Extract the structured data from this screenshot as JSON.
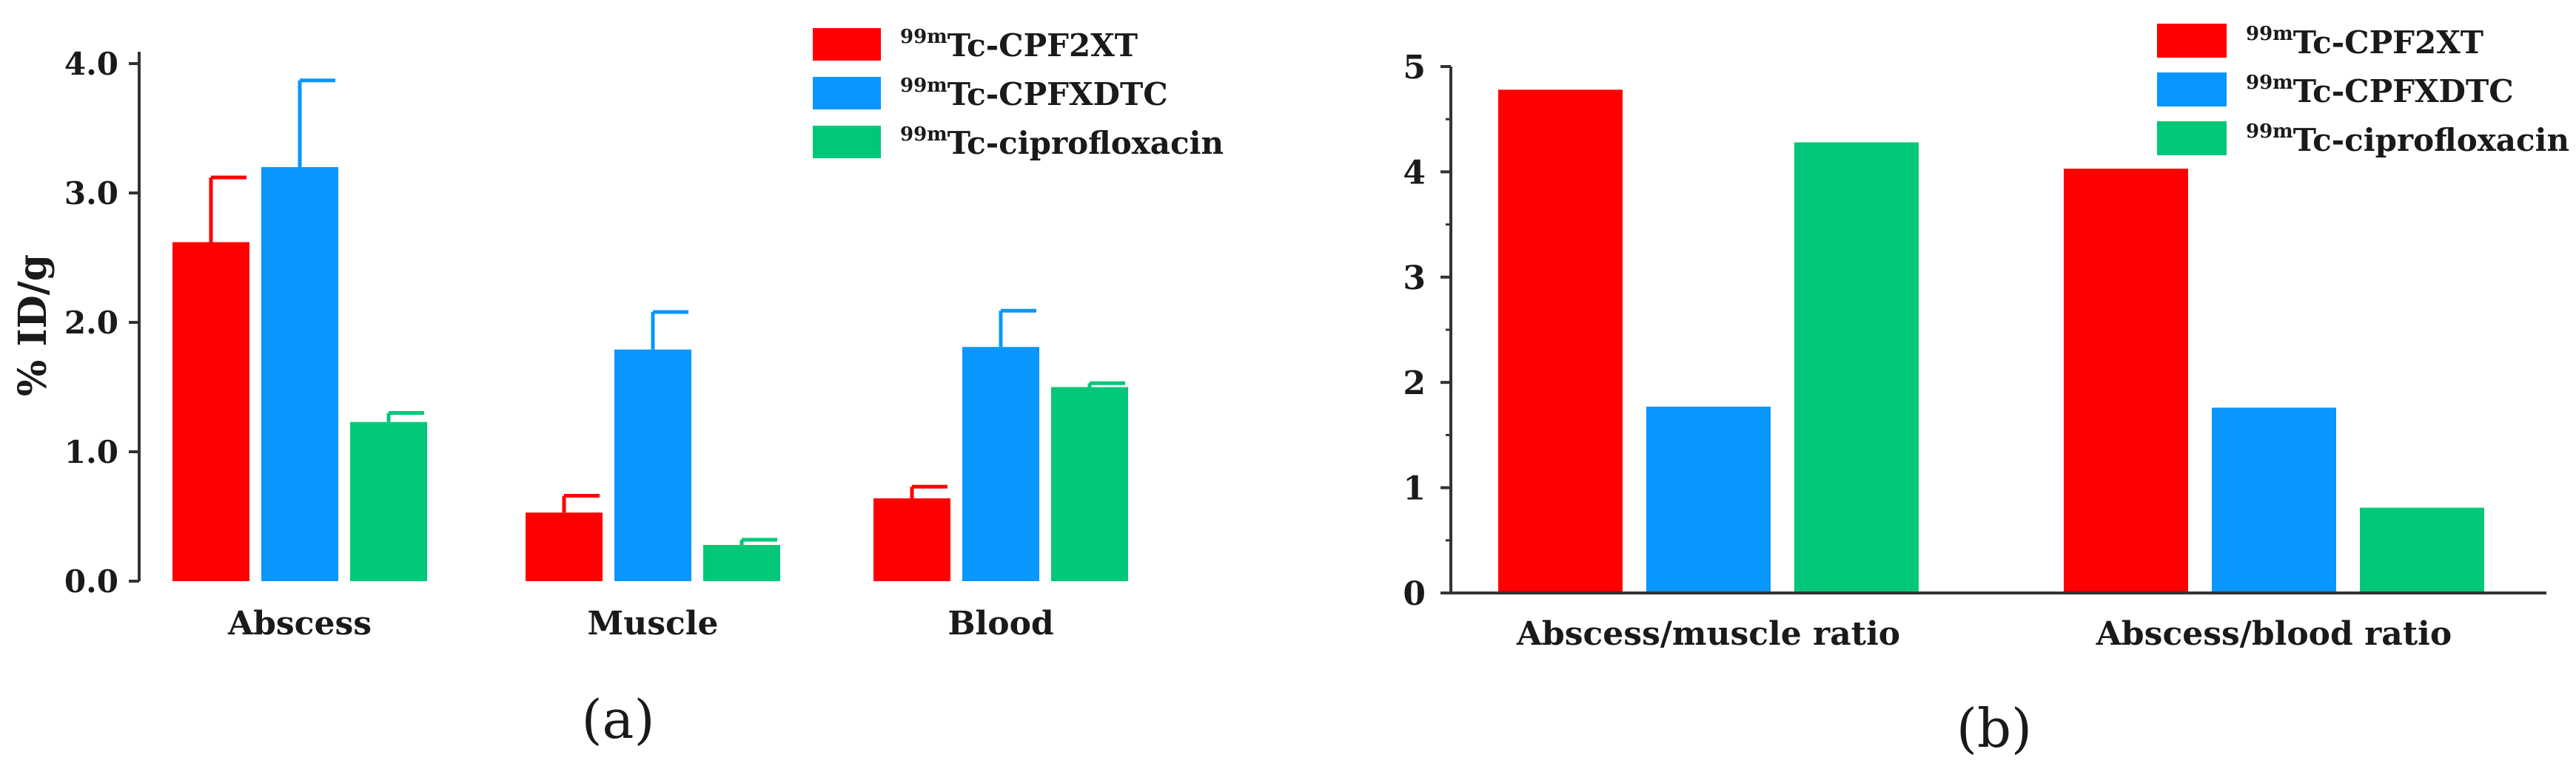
{
  "chart_data": [
    {
      "panel": "(a)",
      "type": "bar",
      "ylabel": "% ID/g",
      "xlabel": "",
      "ylim": [
        0,
        4.0
      ],
      "yticks": [
        "0.0",
        "1.0",
        "2.0",
        "3.0",
        "4.0"
      ],
      "categories": [
        "Abscess",
        "Muscle",
        "Blood"
      ],
      "legend_position": "top-right",
      "series": [
        {
          "name": "Tc-CPF2XT",
          "sup": "99m",
          "color": "#ff0000",
          "values": [
            2.62,
            0.53,
            0.64
          ],
          "errors": [
            0.5,
            0.13,
            0.09
          ]
        },
        {
          "name": "Tc-CPFXDTC",
          "sup": "99m",
          "color": "#0a96ff",
          "values": [
            3.2,
            1.79,
            1.81
          ],
          "errors": [
            0.67,
            0.29,
            0.28
          ]
        },
        {
          "name": "Tc-ciprofloxacin",
          "sup": "99m",
          "color": "#00c878",
          "values": [
            1.23,
            0.28,
            1.5
          ],
          "errors": [
            0.07,
            0.04,
            0.03
          ]
        }
      ]
    },
    {
      "panel": "(b)",
      "type": "bar",
      "ylabel": "",
      "xlabel": "",
      "ylim": [
        0,
        5
      ],
      "yticks": [
        "0",
        "1",
        "2",
        "3",
        "4",
        "5"
      ],
      "categories": [
        "Abscess/muscle ratio",
        "Abscess/blood ratio"
      ],
      "legend_position": "top-right",
      "series": [
        {
          "name": "Tc-CPF2XT",
          "sup": "99m",
          "color": "#ff0000",
          "values": [
            4.78,
            4.03
          ]
        },
        {
          "name": "Tc-CPFXDTC",
          "sup": "99m",
          "color": "#0a96ff",
          "values": [
            1.77,
            1.76
          ]
        },
        {
          "name": "Tc-ciprofloxacin",
          "sup": "99m",
          "color": "#00c878",
          "values": [
            4.28,
            0.81
          ]
        }
      ]
    }
  ]
}
